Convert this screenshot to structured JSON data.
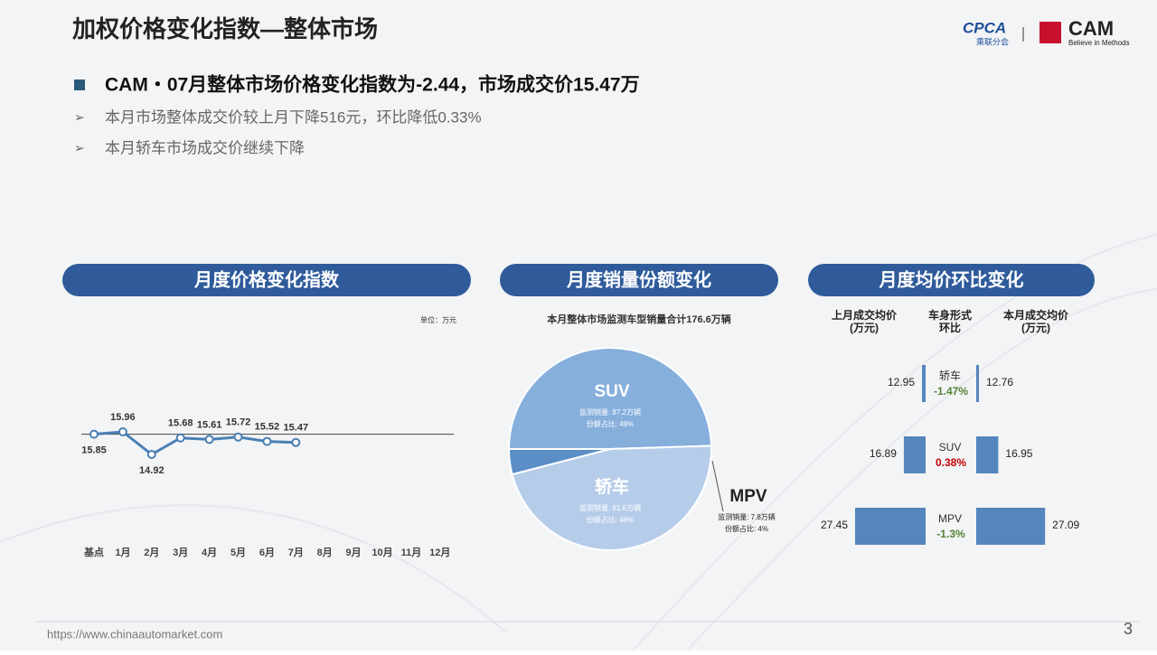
{
  "header": {
    "title": "加权价格变化指数—整体市场",
    "logo1": "CPCA",
    "logo1_sub": "乘联分会",
    "logo2": "CAM",
    "logo2_sub": "Believe in Methods"
  },
  "headline": "CAM・07月整体市场价格变化指数为-2.44，市场成交价15.47万",
  "bullets": [
    "本月市场整体成交价较上月下降516元，环比降低0.33%",
    "本月轿车市场成交价继续下降"
  ],
  "chart_data": [
    {
      "type": "line",
      "title": "月度价格变化指数",
      "unit": "单位：万元",
      "categories": [
        "基点",
        "1月",
        "2月",
        "3月",
        "4月",
        "5月",
        "6月",
        "7月",
        "8月",
        "9月",
        "10月",
        "11月",
        "12月"
      ],
      "values": [
        15.85,
        15.96,
        14.92,
        15.68,
        15.61,
        15.72,
        15.52,
        15.47,
        null,
        null,
        null,
        null,
        null
      ],
      "color": "#4a7fb5"
    },
    {
      "type": "pie",
      "title": "月度销量份额变化",
      "subtitle": "本月整体市场监测车型销量合计176.6万辆",
      "categories": [
        "SUV",
        "轿车",
        "MPV"
      ],
      "values": [
        49,
        46,
        4
      ],
      "value_labels": [
        "份额占比: 49%",
        "份额占比: 46%",
        "份额占比: 4%"
      ],
      "sales": [
        87.2,
        81.6,
        7.8
      ],
      "sales_labels": [
        "监测销量: 87.2万辆",
        "监测销量: 81.6万辆",
        "监测销量: 7.8万辆"
      ],
      "colors": [
        "#86afdc",
        "#b6cdea",
        "#5b8ec7"
      ]
    },
    {
      "type": "hbar-compare",
      "title": "月度均价环比变化",
      "categories_label": "车身形式",
      "change_label": "环比",
      "unit": "(万元)",
      "categories": [
        "轿车",
        "SUV",
        "MPV"
      ],
      "series": [
        {
          "name": "上月成交均价",
          "color": "#5585bd",
          "values": [
            12.95,
            16.89,
            27.45
          ]
        },
        {
          "name": "本月成交均价",
          "color": "#5585bd",
          "values": [
            12.76,
            16.95,
            27.09
          ]
        }
      ],
      "change": [
        -1.47,
        0.38,
        -1.3
      ],
      "change_labels": [
        "-1.47%",
        "0.38%",
        "-1.3%"
      ],
      "change_colors": {
        "up": "#c00000",
        "down": "#548235"
      }
    }
  ]
}
